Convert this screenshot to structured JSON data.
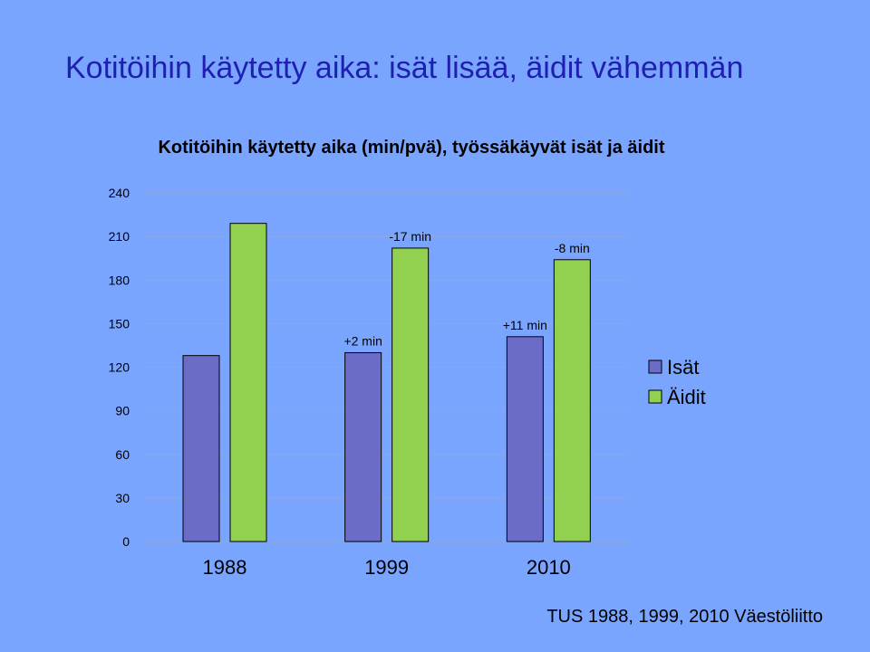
{
  "slide": {
    "title": "Kotitöihin käytetty aika: isät lisää, äidit vähemmän",
    "source": "TUS 1988, 1999, 2010 Väestöliitto"
  },
  "chart_data": {
    "type": "bar",
    "title": "Kotitöihin käytetty aika (min/pvä), työssäkäyvät isät ja äidit",
    "categories": [
      "1988",
      "1999",
      "2010"
    ],
    "series": [
      {
        "name": "Isät",
        "values": [
          128,
          130,
          141
        ],
        "color": "#6b6bc8"
      },
      {
        "name": "Äidit",
        "values": [
          219,
          202,
          194
        ],
        "color": "#92d050"
      }
    ],
    "annotations": [
      {
        "series": 0,
        "category": 1,
        "text": "+2 min"
      },
      {
        "series": 0,
        "category": 2,
        "text": "+11 min"
      },
      {
        "series": 1,
        "category": 1,
        "text": "-17 min"
      },
      {
        "series": 1,
        "category": 2,
        "text": "-8 min"
      }
    ],
    "ylim": [
      0,
      240
    ],
    "yticks": [
      0,
      30,
      60,
      90,
      120,
      150,
      180,
      210,
      240
    ],
    "grid": true,
    "legend": "right"
  }
}
